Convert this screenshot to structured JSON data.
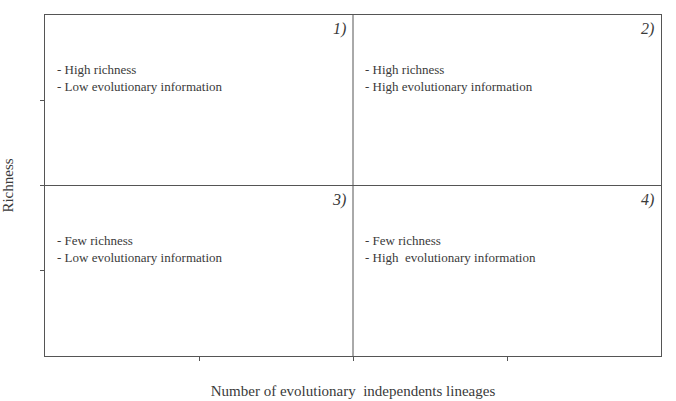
{
  "chart_data": {
    "type": "quadrant",
    "xlabel": "Number of evolutionary  independents lineages",
    "ylabel": "Richness",
    "xlim": [
      0,
      1
    ],
    "ylim": [
      0,
      1
    ],
    "xticks": [
      0.25,
      0.5,
      0.75
    ],
    "yticks": [
      0.25,
      0.5,
      0.75
    ],
    "tick_labels": false,
    "grid": false,
    "dividers": {
      "x": 0.5,
      "y": 0.5
    },
    "quadrants": [
      {
        "label": "1)",
        "text": "- High richness\n- Low evolutionary information"
      },
      {
        "label": "2)",
        "text": "- High richness\n- High evolutionary information"
      },
      {
        "label": "3)",
        "text": "- Few richness\n- Low evolutionary information"
      },
      {
        "label": "4)",
        "text": "- Few richness\n- High  evolutionary information"
      }
    ]
  }
}
